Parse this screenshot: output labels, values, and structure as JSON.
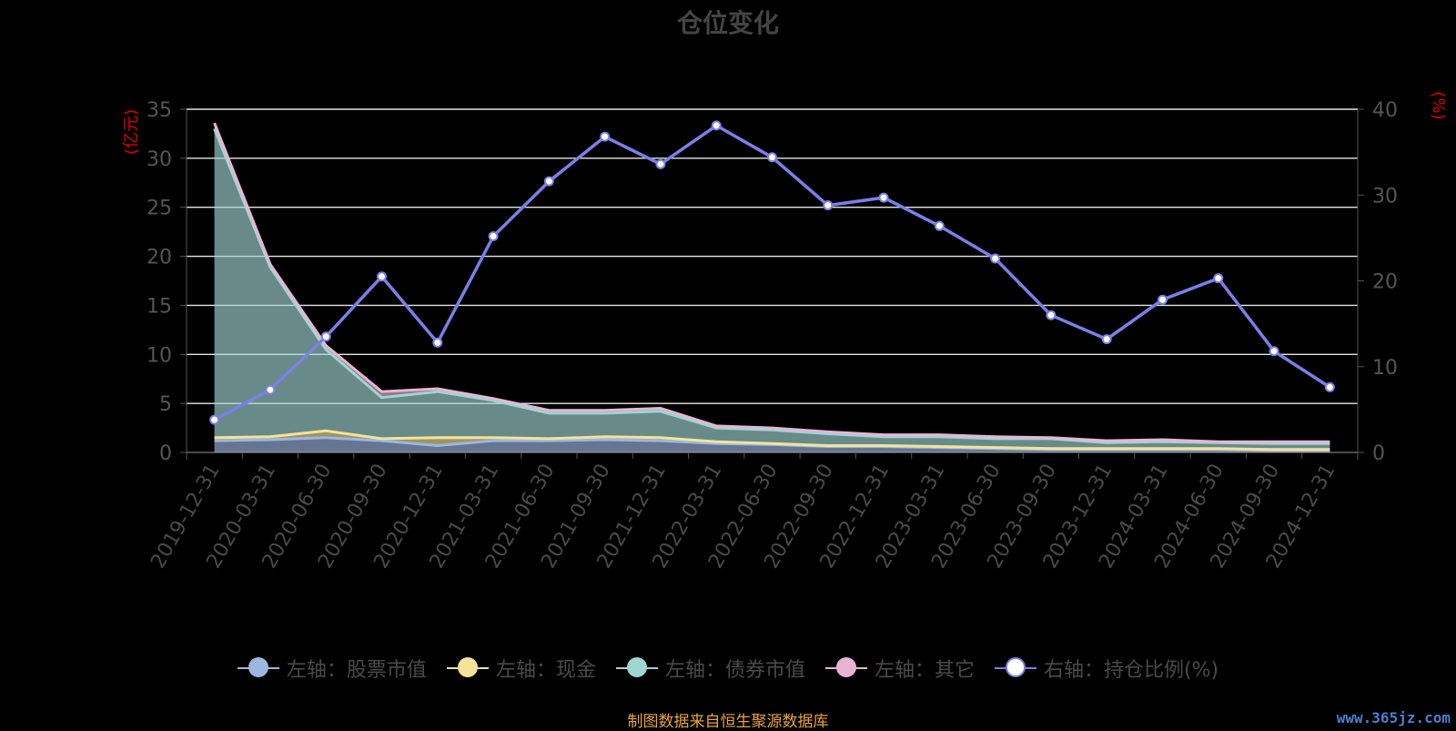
{
  "chart_data": {
    "type": "area",
    "title": "仓位变化",
    "ylabel_left": "(亿元)",
    "ylabel_right": "(%)",
    "ylim_left": [
      0,
      35
    ],
    "ylim_right": [
      0,
      40
    ],
    "yticks_left": [
      0,
      5,
      10,
      15,
      20,
      25,
      30,
      35
    ],
    "yticks_right": [
      0,
      10,
      20,
      30,
      40
    ],
    "grid": true,
    "legend_position": "bottom",
    "x": [
      "2019-12-31",
      "2020-03-31",
      "2020-06-30",
      "2020-09-30",
      "2020-12-31",
      "2021-03-31",
      "2021-06-30",
      "2021-09-30",
      "2021-12-31",
      "2022-03-31",
      "2022-06-30",
      "2022-09-30",
      "2022-12-31",
      "2023-03-31",
      "2023-06-30",
      "2023-09-30",
      "2023-12-31",
      "2024-03-31",
      "2024-06-30",
      "2024-09-30",
      "2024-12-31"
    ],
    "series": [
      {
        "name": "左轴：股票市值",
        "axis": "left",
        "stack": true,
        "color": "#9db6e0",
        "values": [
          1.2,
          1.3,
          1.5,
          1.2,
          0.7,
          1.2,
          1.2,
          1.3,
          1.2,
          0.9,
          0.8,
          0.6,
          0.6,
          0.5,
          0.4,
          0.3,
          0.3,
          0.3,
          0.3,
          0.2,
          0.2
        ]
      },
      {
        "name": "左轴：现金",
        "axis": "left",
        "stack": true,
        "color": "#f5e39a",
        "values": [
          0.3,
          0.3,
          0.7,
          0.2,
          0.8,
          0.3,
          0.2,
          0.3,
          0.3,
          0.2,
          0.1,
          0.1,
          0.1,
          0.1,
          0.1,
          0.1,
          0.1,
          0.1,
          0.1,
          0.1,
          0.1
        ]
      },
      {
        "name": "左轴：债券市值",
        "axis": "left",
        "stack": true,
        "color": "#9fd6d2",
        "values": [
          31.5,
          17.3,
          8.3,
          4.2,
          4.7,
          3.8,
          2.6,
          2.4,
          2.7,
          1.4,
          1.4,
          1.2,
          0.9,
          1.0,
          0.9,
          1.0,
          0.6,
          0.7,
          0.6,
          0.6,
          0.6
        ]
      },
      {
        "name": "左轴：其它",
        "axis": "left",
        "stack": true,
        "color": "#e8b4d4",
        "values": [
          0.6,
          0.3,
          0.4,
          0.6,
          0.3,
          0.2,
          0.3,
          0.3,
          0.3,
          0.2,
          0.2,
          0.2,
          0.2,
          0.2,
          0.2,
          0.1,
          0.2,
          0.2,
          0.1,
          0.2,
          0.2
        ]
      },
      {
        "name": "右轴：持仓比例(%)",
        "axis": "right",
        "stack": false,
        "color": "#7b7fe8",
        "values": [
          3.8,
          7.3,
          13.5,
          20.5,
          12.8,
          25.2,
          31.6,
          36.8,
          33.6,
          38.1,
          34.4,
          28.8,
          29.7,
          26.4,
          22.6,
          16.0,
          13.2,
          17.8,
          20.3,
          11.8,
          7.6
        ]
      }
    ]
  },
  "source_text": "制图数据来自恒生聚源数据库",
  "watermark_text": "www.365jz.com"
}
